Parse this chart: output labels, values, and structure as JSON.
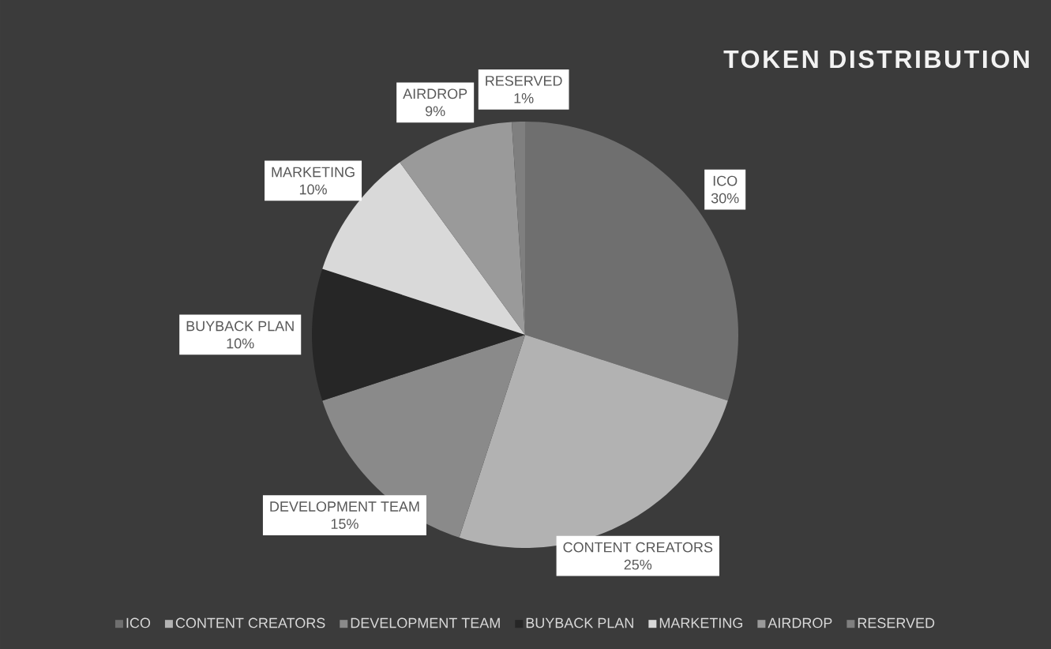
{
  "chart_data": {
    "type": "pie",
    "title": "TOKEN DISTRIBUTION",
    "categories": [
      "ICO",
      "CONTENT CREATORS",
      "DEVELOPMENT TEAM",
      "BUYBACK PLAN",
      "MARKETING",
      "AIRDROP",
      "RESERVED"
    ],
    "values": [
      30,
      25,
      15,
      10,
      10,
      9,
      1
    ],
    "value_labels": [
      "30%",
      "25%",
      "15%",
      "10%",
      "10%",
      "9%",
      "1%"
    ],
    "colors": [
      "#6f6f6f",
      "#b2b2b2",
      "#8a8a8a",
      "#262626",
      "#d9d9d9",
      "#9a9a9a",
      "#7f7f7f"
    ],
    "legend": "bottom"
  }
}
